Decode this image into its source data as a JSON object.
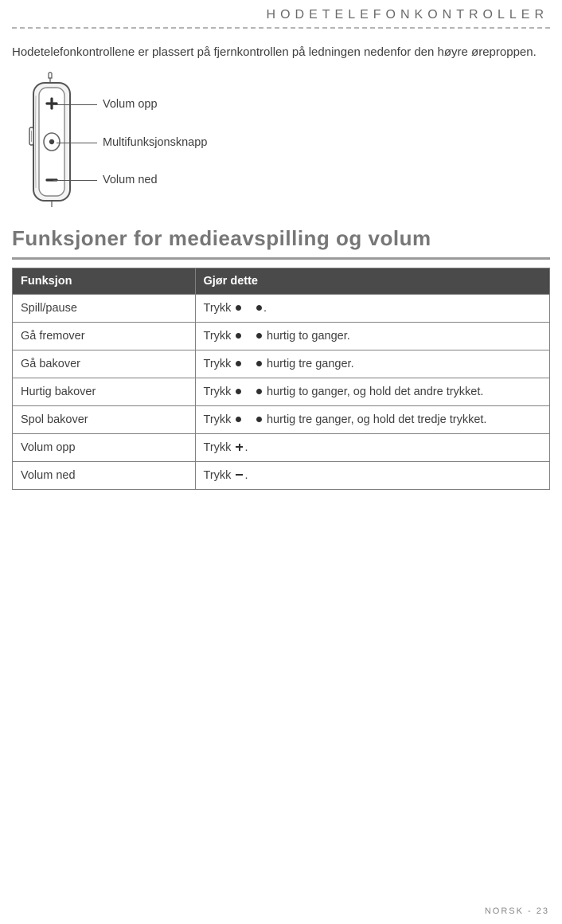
{
  "header": {
    "title": "HODETELEFONKONTROLLER"
  },
  "intro": "Hodetelefonkontrollene er plassert på fjernkontrollen på ledningen nedenfor den høyre øreproppen.",
  "diagram": {
    "labels": {
      "vol_up": "Volum opp",
      "multi": "Multifunksjonsknapp",
      "vol_down": "Volum ned"
    }
  },
  "section": {
    "title": "Funksjoner for medieavspilling og volum"
  },
  "table": {
    "headers": {
      "func": "Funksjon",
      "action": "Gjør dette"
    },
    "rows": [
      {
        "func": "Spill/pause",
        "pre": "Trykk ",
        "icons": [
          "dot",
          "gap",
          "dot"
        ],
        "post": "."
      },
      {
        "func": "Gå fremover",
        "pre": "Trykk ",
        "icons": [
          "dot",
          "gap",
          "dot"
        ],
        "post": " hurtig to ganger."
      },
      {
        "func": "Gå bakover",
        "pre": "Trykk ",
        "icons": [
          "dot",
          "gap",
          "dot"
        ],
        "post": " hurtig tre ganger."
      },
      {
        "func": "Hurtig bakover",
        "pre": "Trykk ",
        "icons": [
          "dot",
          "gap",
          "dot"
        ],
        "post": " hurtig to ganger, og hold det andre trykket."
      },
      {
        "func": "Spol bakover",
        "pre": "Trykk ",
        "icons": [
          "dot",
          "gap",
          "dot"
        ],
        "post": " hurtig tre ganger, og hold det tredje trykket."
      },
      {
        "func": "Volum opp",
        "pre": "Trykk ",
        "icons": [
          "plus"
        ],
        "post": "."
      },
      {
        "func": "Volum ned",
        "pre": "Trykk ",
        "icons": [
          "minus"
        ],
        "post": "."
      }
    ]
  },
  "footer": "NORSK - 23",
  "style": {
    "page_bg": "#ffffff",
    "text_color": "#3f3f3f",
    "header_color": "#6a6a6a",
    "dashed_color": "#b5b5b5",
    "section_title_color": "#777777",
    "section_rule_color": "#9a9a9a",
    "table_header_bg": "#4a4a4a",
    "table_header_fg": "#ffffff",
    "table_border": "#808080",
    "footer_color": "#888888"
  }
}
